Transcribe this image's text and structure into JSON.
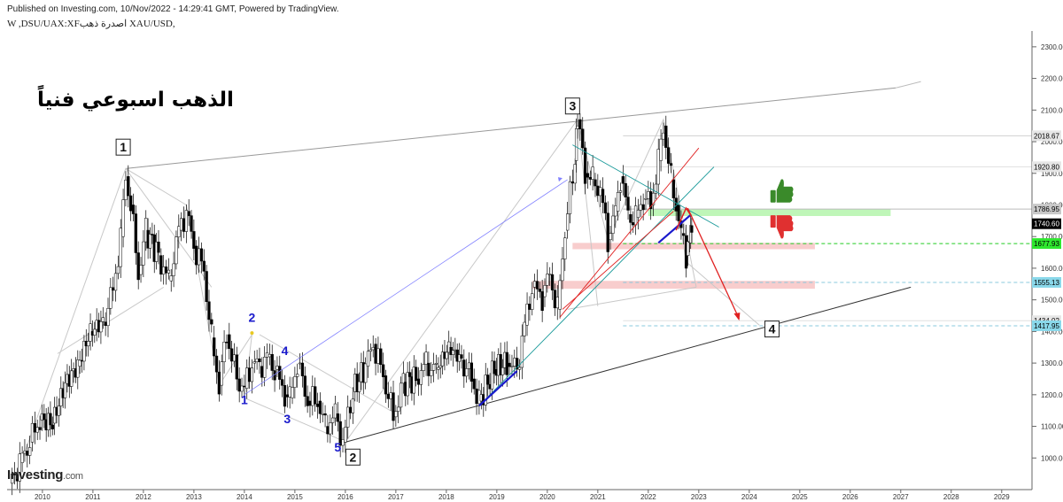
{
  "header": {
    "published": "Published on Investing.com, 10/Nov/2022 - 14:29:41 GMT, Powered by TradingView.",
    "symbol_line": "W ,DSU/UAX:XFاصدرة ذهب XAU/USD,"
  },
  "annotation_title": "الذهب اسبوعي فنياً",
  "logo": {
    "brand": "Investing",
    "suffix": ".com"
  },
  "colors": {
    "candle_up": "#ffffff",
    "candle_down": "#000000",
    "wick": "#000000",
    "trend_gray": "#888888",
    "wave_blue": "#1a1acc",
    "target_red": "#e02020",
    "green_zone": "#b8f5b0",
    "red_zone": "#f7c8c8",
    "price_box": "#000000",
    "label_green": "#2ee82e",
    "label_cyan": "#8ad8ea",
    "label_gray": "#d8d8d8"
  },
  "chart_data": {
    "type": "candlestick",
    "x_axis": {
      "labels": [
        "2010",
        "2011",
        "2012",
        "2013",
        "2014",
        "2015",
        "2016",
        "2017",
        "2018",
        "2019",
        "2020",
        "2021",
        "2022",
        "2023",
        "2024",
        "2025",
        "2026",
        "2027",
        "2028",
        "2029"
      ],
      "range": [
        2009.3,
        2029.6
      ]
    },
    "y_axis": {
      "labels": [
        "2300.00",
        "2200.00",
        "2100.00",
        "2000.00",
        "1900.00",
        "1800.00",
        "1700.00",
        "1600.00",
        "1500.00",
        "1400.00",
        "1300.00",
        "1200.00",
        "1100.00",
        "1000.00"
      ],
      "range": [
        900,
        2350
      ],
      "scale": "linear"
    },
    "grid": false,
    "price_path": [
      [
        2009.35,
        920
      ],
      [
        2009.55,
        985
      ],
      [
        2009.75,
        1050
      ],
      [
        2009.95,
        1120
      ],
      [
        2010.2,
        1110
      ],
      [
        2010.45,
        1235
      ],
      [
        2010.7,
        1290
      ],
      [
        2010.95,
        1400
      ],
      [
        2011.2,
        1430
      ],
      [
        2011.4,
        1530
      ],
      [
        2011.55,
        1700
      ],
      [
        2011.65,
        1890
      ],
      [
        2011.75,
        1800
      ],
      [
        2011.9,
        1580
      ],
      [
        2012.05,
        1720
      ],
      [
        2012.3,
        1640
      ],
      [
        2012.5,
        1560
      ],
      [
        2012.7,
        1720
      ],
      [
        2012.85,
        1780
      ],
      [
        2013.0,
        1670
      ],
      [
        2013.2,
        1590
      ],
      [
        2013.35,
        1380
      ],
      [
        2013.5,
        1230
      ],
      [
        2013.65,
        1390
      ],
      [
        2013.85,
        1250
      ],
      [
        2014.0,
        1220
      ],
      [
        2014.15,
        1300
      ],
      [
        2014.3,
        1290
      ],
      [
        2014.45,
        1320
      ],
      [
        2014.6,
        1280
      ],
      [
        2014.8,
        1200
      ],
      [
        2014.9,
        1190
      ],
      [
        2015.05,
        1300
      ],
      [
        2015.25,
        1180
      ],
      [
        2015.45,
        1180
      ],
      [
        2015.6,
        1100
      ],
      [
        2015.8,
        1140
      ],
      [
        2015.95,
        1050
      ],
      [
        2016.15,
        1210
      ],
      [
        2016.4,
        1290
      ],
      [
        2016.55,
        1360
      ],
      [
        2016.75,
        1260
      ],
      [
        2016.95,
        1130
      ],
      [
        2017.15,
        1240
      ],
      [
        2017.4,
        1250
      ],
      [
        2017.6,
        1300
      ],
      [
        2017.8,
        1280
      ],
      [
        2018.05,
        1350
      ],
      [
        2018.3,
        1310
      ],
      [
        2018.5,
        1250
      ],
      [
        2018.65,
        1180
      ],
      [
        2018.95,
        1280
      ],
      [
        2019.2,
        1300
      ],
      [
        2019.4,
        1280
      ],
      [
        2019.55,
        1420
      ],
      [
        2019.7,
        1540
      ],
      [
        2019.9,
        1510
      ],
      [
        2020.05,
        1580
      ],
      [
        2020.2,
        1470
      ],
      [
        2020.35,
        1720
      ],
      [
        2020.55,
        1940
      ],
      [
        2020.6,
        2070
      ],
      [
        2020.75,
        1900
      ],
      [
        2020.9,
        1880
      ],
      [
        2021.05,
        1850
      ],
      [
        2021.2,
        1690
      ],
      [
        2021.35,
        1780
      ],
      [
        2021.45,
        1890
      ],
      [
        2021.6,
        1770
      ],
      [
        2021.75,
        1760
      ],
      [
        2021.9,
        1820
      ],
      [
        2022.05,
        1800
      ],
      [
        2022.2,
        1940
      ],
      [
        2022.3,
        2050
      ],
      [
        2022.45,
        1880
      ],
      [
        2022.55,
        1800
      ],
      [
        2022.65,
        1710
      ],
      [
        2022.75,
        1640
      ],
      [
        2022.82,
        1680
      ],
      [
        2022.86,
        1740
      ]
    ],
    "current_price": 1740.6,
    "price_labels": [
      "2018.67",
      "1920.80",
      "1786.95",
      "1740.60",
      "1677.93",
      "1555.13",
      "1434.02",
      "1417.95"
    ],
    "wave_labels_major": [
      "1",
      "3",
      "2",
      "4"
    ],
    "wave_labels_minor": [
      "2",
      "4",
      "1",
      "3",
      "5"
    ]
  }
}
